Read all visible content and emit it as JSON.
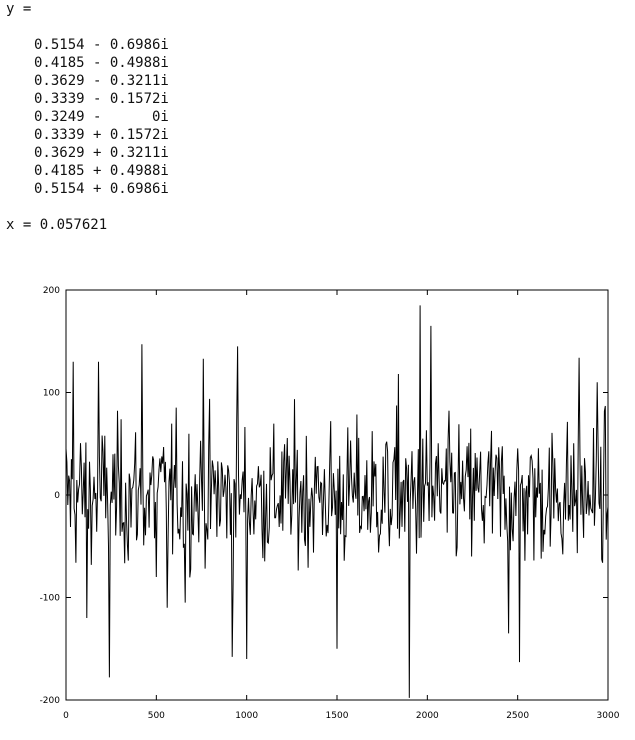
{
  "console": {
    "y_label": "y =",
    "y_values": [
      "0.5154 - 0.6986i",
      "0.4185 - 0.4988i",
      "0.3629 - 0.3211i",
      "0.3339 - 0.1572i",
      "0.3249 -      0i",
      "0.3339 + 0.1572i",
      "0.3629 + 0.3211i",
      "0.4185 + 0.4988i",
      "0.5154 + 0.6986i"
    ],
    "x_line": "x = 0.057621"
  },
  "chart_data": {
    "type": "line",
    "title": "",
    "xlabel": "",
    "ylabel": "",
    "xlim": [
      0,
      3000
    ],
    "ylim": [
      -200,
      200
    ],
    "xticks": [
      0,
      500,
      1000,
      1500,
      2000,
      2500,
      3000
    ],
    "yticks": [
      -200,
      -100,
      0,
      100,
      200
    ],
    "xtick_labels": [
      "0",
      "500",
      "1000",
      "1500",
      "2000",
      "2500",
      "3000"
    ],
    "ytick_labels": [
      "-200",
      "-100",
      "0",
      "100",
      "200"
    ],
    "grid": false,
    "series": [
      {
        "x": [
          0,
          3000
        ],
        "y": [
          0,
          0
        ],
        "n_points": 3000,
        "y_min": -198,
        "y_max": 185,
        "notable_points": [
          [
            40,
            130
          ],
          [
            115,
            -120
          ],
          [
            180,
            130
          ],
          [
            240,
            -178
          ],
          [
            420,
            147
          ],
          [
            500,
            -80
          ],
          [
            560,
            -110
          ],
          [
            660,
            -105
          ],
          [
            760,
            133
          ],
          [
            920,
            -158
          ],
          [
            950,
            145
          ],
          [
            1000,
            -160
          ],
          [
            1500,
            -150
          ],
          [
            1840,
            118
          ],
          [
            1900,
            -198
          ],
          [
            1960,
            185
          ],
          [
            2020,
            165
          ],
          [
            2450,
            -135
          ],
          [
            2510,
            -163
          ],
          [
            2840,
            134
          ],
          [
            2940,
            110
          ]
        ],
        "color": "#000000"
      }
    ]
  }
}
